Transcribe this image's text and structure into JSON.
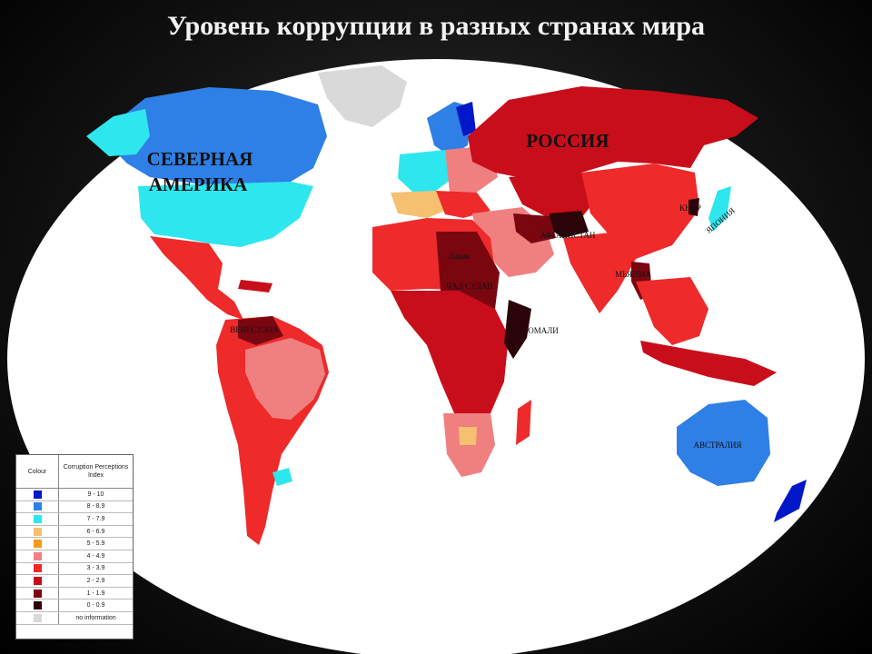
{
  "title": "Уровень коррупции в разных странах мира",
  "map_labels": {
    "north_america_1": "СЕВЕРНАЯ",
    "north_america_2": "АМЕРИКА",
    "russia": "РОССИЯ",
    "japan": "ЯПОНИЯ",
    "dprk": "КНДР",
    "afghanistan": "АФГАНИСТАН",
    "myanmar": "МЬЯНМА",
    "libya": "Ливия",
    "chad_sudan": "ЧАД СУДАН",
    "somalia": "СОМАЛИ",
    "venezuela": "ВЕНЕСУЭЛА",
    "australia": "АВСТРАЛИЯ"
  },
  "legend": {
    "colour_header": "Colour",
    "index_header": "Corruption Perceptions Index",
    "rows": [
      {
        "range": "9 - 10",
        "color": "#0018c8"
      },
      {
        "range": "8 - 8.9",
        "color": "#2f7fe8"
      },
      {
        "range": "7 - 7.9",
        "color": "#2ee6ee"
      },
      {
        "range": "6 - 6.9",
        "color": "#f5c070"
      },
      {
        "range": "5 - 5.9",
        "color": "#f29a1a"
      },
      {
        "range": "4 - 4.9",
        "color": "#f08080"
      },
      {
        "range": "3 - 3.9",
        "color": "#ee2a2a"
      },
      {
        "range": "2 - 2.9",
        "color": "#c80e1a"
      },
      {
        "range": "1 - 1.9",
        "color": "#7a0610"
      },
      {
        "range": "0 - 0.9",
        "color": "#2a0408"
      },
      {
        "range": "no information",
        "color": "#d8d8d8"
      }
    ]
  }
}
